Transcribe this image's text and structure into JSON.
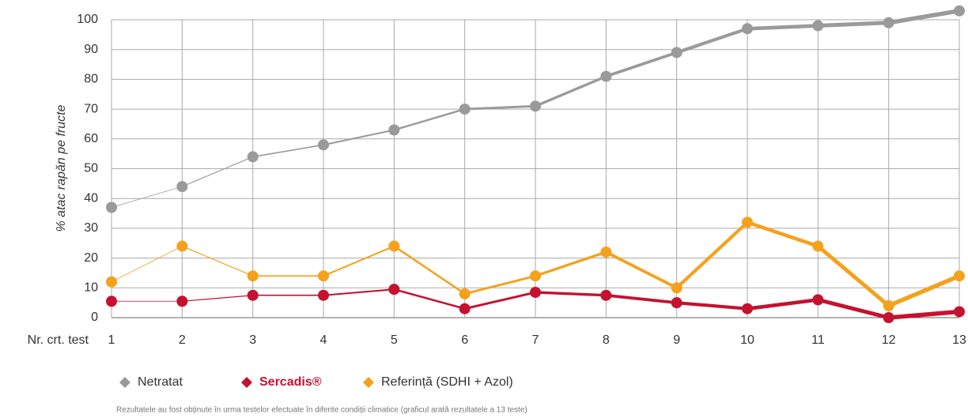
{
  "chart_data": {
    "type": "line",
    "y_label": "% atac rapăn pe fructe",
    "x_label": "Nr. crt. test",
    "categories": [
      "1",
      "2",
      "3",
      "4",
      "5",
      "6",
      "7",
      "8",
      "9",
      "10",
      "11",
      "12",
      "13"
    ],
    "series": [
      {
        "name": "Netratat",
        "color": "#9a9a9a",
        "values": [
          37,
          44,
          54,
          58,
          63,
          70,
          71,
          81,
          89,
          97,
          98,
          99,
          103
        ]
      },
      {
        "name": "Sercadis®",
        "color": "#c4122f",
        "values": [
          5.5,
          5.5,
          7.5,
          7.5,
          9.5,
          3,
          8.5,
          7.5,
          5,
          3,
          6,
          0,
          2
        ]
      },
      {
        "name": "Referință (SDHI + Azol)",
        "color": "#f5a11c",
        "values": [
          12,
          24,
          14,
          14,
          24,
          8,
          14,
          22,
          10,
          32,
          24,
          4,
          14
        ]
      }
    ],
    "ylim": [
      0,
      100
    ],
    "yticks": [
      0,
      10,
      20,
      30,
      40,
      50,
      60,
      70,
      80,
      90,
      100
    ],
    "grid": true,
    "legend": "bottom",
    "footnote": "Rezultatele au fost obținute în urma testelor efectuate în diferite condiții climatice (graficul arată rezultatele a 13 teste)"
  }
}
